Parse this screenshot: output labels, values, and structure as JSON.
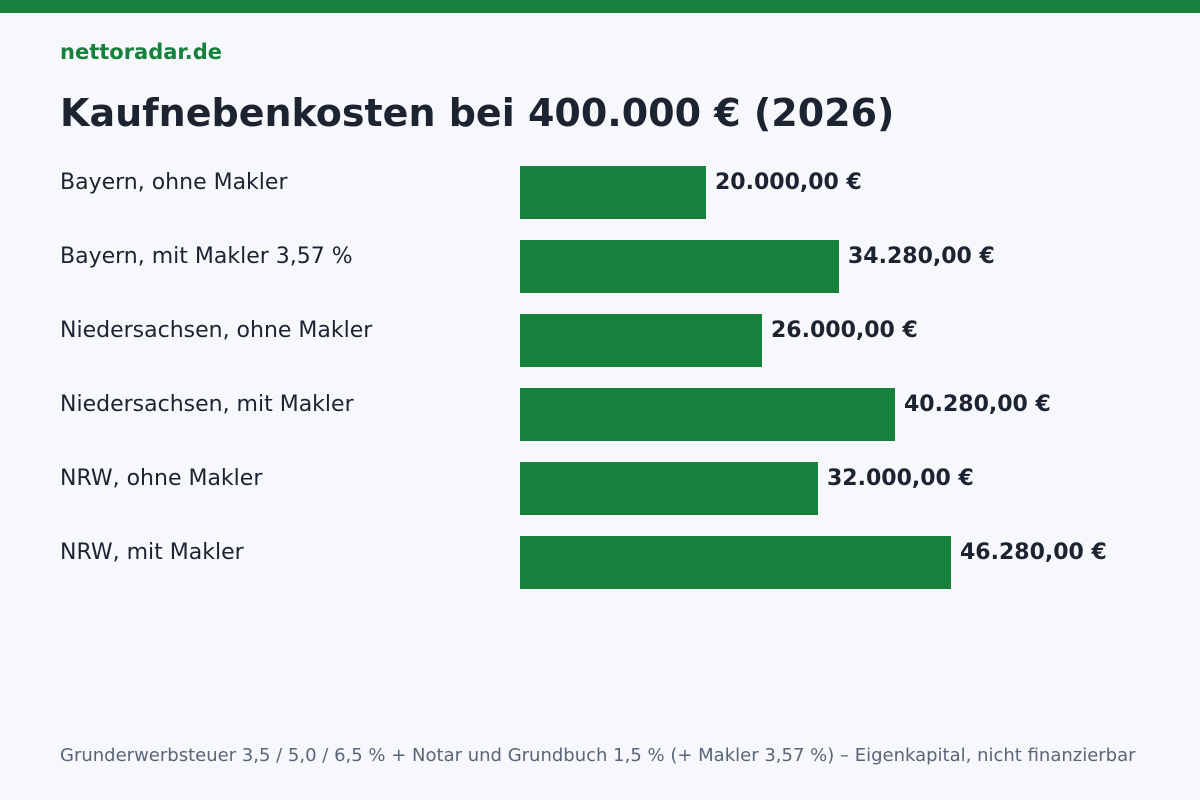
{
  "brand": "nettoradar.de",
  "colors": {
    "accent": "#16803c",
    "background": "#f6f8fb",
    "text": "#1c2331",
    "muted": "#5a6577"
  },
  "chart_data": {
    "type": "bar",
    "orientation": "horizontal",
    "title": "Kaufnebenkosten bei 400.000 € (2026)",
    "categories": [
      "Bayern, ohne Makler",
      "Bayern, mit Makler 3,57 %",
      "Niedersachsen, ohne Makler",
      "Niedersachsen, mit Makler",
      "NRW, ohne Makler",
      "NRW, mit Makler"
    ],
    "values": [
      20000,
      34280,
      26000,
      40280,
      32000,
      46280
    ],
    "value_labels": [
      "20.000,00 €",
      "34.280,00 €",
      "26.000,00 €",
      "40.280,00 €",
      "32.000,00 €",
      "46.280,00 €"
    ],
    "xlabel": "",
    "ylabel": "",
    "xlim": [
      0,
      46280
    ],
    "grid": false,
    "legend": "none"
  },
  "footnote": "Grunderwerbsteuer 3,5 / 5,0 / 6,5 % + Notar und Grundbuch 1,5 % (+ Makler 3,57 %) – Eigenkapital, nicht finanzierbar"
}
